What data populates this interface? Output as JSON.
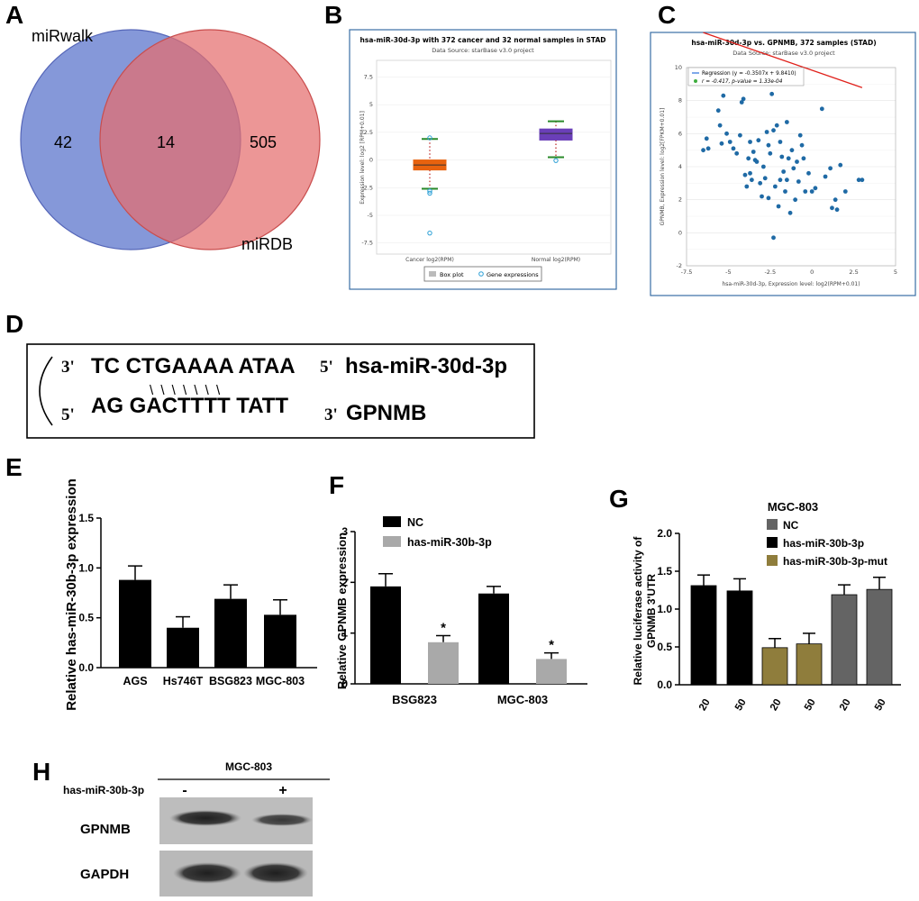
{
  "panels": {
    "A": {
      "letter": "A",
      "set1": {
        "label": "miRwalk",
        "color": "#7b8fd6",
        "only": "42"
      },
      "set2": {
        "label": "miRDB",
        "color": "#e98a8a",
        "only": "505"
      },
      "overlap": "14"
    },
    "B": {
      "letter": "B",
      "title": "hsa-miR-30d-3p with 372 cancer and 32 normal samples in STAD",
      "subtitle": "Data Source: starBase v3.0 project",
      "ylabel": "Expression level: log2 [RPM+0.01]",
      "legend_box": "Box plot",
      "legend_points": "Gene expressions"
    },
    "C": {
      "letter": "C",
      "title": "hsa-miR-30d-3p vs. GPNMB, 372 samples (STAD)",
      "subtitle": "Data Source: starBase v3.0 project",
      "legend_regression": "Regression (y = -0.3507x + 9.8410)",
      "legend_stats": "r = -0.417, p-value = 1.33e-04",
      "xlabel": "hsa-miR-30d-3p, Expression level: log2(RPM+0.01)",
      "ylabel": "GPNMB, Expression level: log2[FPKM+0.01]"
    },
    "D": {
      "letter": "D",
      "mirna_3prime": "3'",
      "mirna_seq": "TC CTGAAAA ATAA",
      "mirna_5prime": "5'",
      "mirna_name": "hsa-miR-30d-3p",
      "target_5prime": "5'",
      "target_seq": "AG GACTTTT TATT",
      "target_3prime": "3'",
      "target_name": "GPNMB",
      "pairing": "\\ \\ \\ \\ \\ \\ \\"
    },
    "E": {
      "letter": "E"
    },
    "F": {
      "letter": "F"
    },
    "G": {
      "letter": "G"
    },
    "H": {
      "letter": "H",
      "cell_line": "MGC-803",
      "treatment_label": "has-miR-30b-3p",
      "minus": "-",
      "plus": "+",
      "rows": [
        "GPNMB",
        "GAPDH"
      ]
    }
  },
  "chart_data": [
    {
      "id": "B",
      "type": "box",
      "title": "hsa-miR-30d-3p with 372 cancer and 32 normal samples in STAD",
      "categories": [
        "Cancer log2(RPM)",
        "Normal log2(RPM)"
      ],
      "yticks": [
        -7.5,
        -5,
        -2.5,
        0,
        2.5,
        5,
        7.5
      ],
      "ylim": [
        -8.5,
        9
      ],
      "boxes": [
        {
          "name": "Cancer log2(RPM)",
          "q1": -0.9,
          "median": -0.45,
          "q3": 0.0,
          "whisker_low": -2.6,
          "whisker_high": 1.9,
          "outliers": [
            2.0,
            -2.8,
            -3.0,
            -6.6
          ],
          "color": "#e8620e"
        },
        {
          "name": "Normal log2(RPM)",
          "q1": 1.8,
          "median": 2.4,
          "q3": 2.8,
          "whisker_low": 0.25,
          "whisker_high": 3.5,
          "outliers": [
            -0.05
          ],
          "color": "#6a3fb8"
        }
      ]
    },
    {
      "id": "C",
      "type": "scatter",
      "title": "hsa-miR-30d-3p vs. GPNMB, 372 samples (STAD)",
      "xticks": [
        -7.5,
        -5,
        -2.5,
        0,
        2.5,
        5
      ],
      "yticks": [
        -2,
        0,
        2,
        4,
        6,
        8,
        10
      ],
      "xlim": [
        -7.5,
        5
      ],
      "ylim": [
        -2,
        10
      ],
      "regression": {
        "slope": -0.3507,
        "intercept": 9.841,
        "x_range": [
          -6.5,
          3
        ]
      },
      "points": [
        [
          -6.5,
          5
        ],
        [
          -6.3,
          5.7
        ],
        [
          -6.2,
          5.1
        ],
        [
          -5.6,
          7.4
        ],
        [
          -5.5,
          6.5
        ],
        [
          -5.4,
          5.4
        ],
        [
          -5.3,
          8.3
        ],
        [
          -5.1,
          6
        ],
        [
          -4.9,
          5.5
        ],
        [
          -4.7,
          5.1
        ],
        [
          -4.3,
          5.9
        ],
        [
          -4.2,
          7.9
        ],
        [
          -4.1,
          8.1
        ],
        [
          -4,
          3.5
        ],
        [
          -3.9,
          2.8
        ],
        [
          -3.8,
          4.5
        ],
        [
          -3.7,
          5.5
        ],
        [
          -3.6,
          3.2
        ],
        [
          -3.5,
          4.9
        ],
        [
          -3.4,
          4.4
        ],
        [
          -3.2,
          5.6
        ],
        [
          -3.1,
          3
        ],
        [
          -3,
          2.2
        ],
        [
          -2.9,
          4
        ],
        [
          -2.8,
          3.3
        ],
        [
          -2.7,
          6.1
        ],
        [
          -2.6,
          5.3
        ],
        [
          -2.5,
          4.8
        ],
        [
          -2.4,
          8.4
        ],
        [
          -2.3,
          6.2
        ],
        [
          -2.2,
          2.8
        ],
        [
          -2.1,
          6.5
        ],
        [
          -2,
          1.6
        ],
        [
          -1.9,
          5.5
        ],
        [
          -1.8,
          4.6
        ],
        [
          -1.7,
          3.7
        ],
        [
          -1.6,
          2.5
        ],
        [
          -1.5,
          3.2
        ],
        [
          -1.4,
          4.5
        ],
        [
          -1.3,
          1.2
        ],
        [
          -1.2,
          5
        ],
        [
          -1.1,
          3.9
        ],
        [
          -1,
          2
        ],
        [
          -0.9,
          4.3
        ],
        [
          -0.8,
          3.1
        ],
        [
          -0.6,
          5.3
        ],
        [
          -0.5,
          4.5
        ],
        [
          -0.4,
          2.5
        ],
        [
          -0.2,
          3.6
        ],
        [
          0.0,
          2.5
        ],
        [
          0.2,
          2.7
        ],
        [
          0.6,
          7.5
        ],
        [
          0.8,
          3.4
        ],
        [
          1.1,
          3.9
        ],
        [
          1.2,
          1.5
        ],
        [
          1.4,
          2
        ],
        [
          1.5,
          1.4
        ],
        [
          1.7,
          4.1
        ],
        [
          2.0,
          2.5
        ],
        [
          2.8,
          3.2
        ],
        [
          3.0,
          3.2
        ],
        [
          -2.3,
          -0.3
        ],
        [
          -3.7,
          3.6
        ],
        [
          -2.6,
          2.1
        ],
        [
          -1.5,
          6.7
        ],
        [
          -4.5,
          4.8
        ],
        [
          -0.7,
          5.9
        ],
        [
          -1.9,
          3.2
        ],
        [
          -3.3,
          4.3
        ]
      ]
    },
    {
      "id": "E",
      "type": "bar",
      "ylabel": "Relative has-miR-30b-3p expression",
      "categories": [
        "AGS",
        "Hs746T",
        "BSG823",
        "MGC-803"
      ],
      "values": [
        0.88,
        0.4,
        0.69,
        0.53
      ],
      "errors": [
        0.14,
        0.11,
        0.14,
        0.15
      ],
      "yticks": [
        "0.0",
        "0.5",
        "1.0",
        "1.5"
      ],
      "ylim": [
        0,
        1.5
      ],
      "color": "#000000"
    },
    {
      "id": "F",
      "type": "bar",
      "ylabel": "Relative GPNMB expression",
      "categories": [
        "BSG823",
        "MGC-803"
      ],
      "series": [
        {
          "name": "NC",
          "values": [
            1.92,
            1.78
          ],
          "errors": [
            0.25,
            0.14
          ],
          "color": "#000000"
        },
        {
          "name": "has-miR-30b-3p",
          "values": [
            0.82,
            0.49
          ],
          "errors": [
            0.13,
            0.12
          ],
          "color": "#a9a9a9"
        }
      ],
      "significance": [
        "*",
        "*"
      ],
      "yticks": [
        "0",
        "1",
        "2",
        "3"
      ],
      "ylim": [
        0,
        3
      ]
    },
    {
      "id": "G",
      "type": "bar",
      "title": "MGC-803",
      "ylabel": "Relative luciferase activity of GPNMB 3'UTR",
      "categories": [
        "20",
        "50",
        "20",
        "50",
        "20",
        "50"
      ],
      "values": [
        1.31,
        1.24,
        0.49,
        0.54,
        1.19,
        1.26
      ],
      "errors": [
        0.14,
        0.16,
        0.12,
        0.14,
        0.13,
        0.16
      ],
      "bar_series": [
        "has-miR-30b-3p",
        "has-miR-30b-3p",
        "has-miR-30b-3p-mut",
        "has-miR-30b-3p-mut",
        "NC",
        "NC"
      ],
      "series": [
        {
          "name": "NC",
          "color": "#646464"
        },
        {
          "name": "has-miR-30b-3p",
          "color": "#000000"
        },
        {
          "name": "has-miR-30b-3p-mut",
          "color": "#8f7d3c"
        }
      ],
      "yticks": [
        "0.0",
        "0.5",
        "1.0",
        "1.5",
        "2.0"
      ],
      "ylim": [
        0,
        2.0
      ]
    }
  ]
}
